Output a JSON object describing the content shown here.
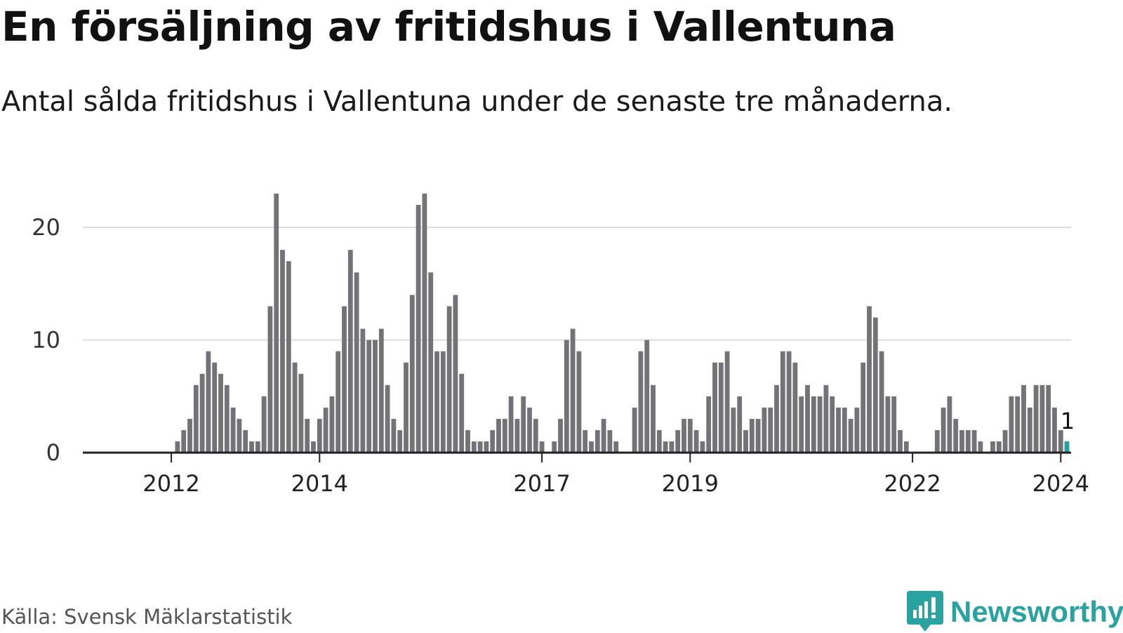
{
  "page": {
    "title": "En försäljning av fritidshus i Vallentuna",
    "subtitle": "Antal sålda fritidshus i Vallentuna under de senaste tre månaderna.",
    "source": "Källa: Svensk Mäklarstatistik",
    "brand": "Newsworthy"
  },
  "colors": {
    "bar": "#737277",
    "highlight": "#27a39e",
    "grid": "#dddddd",
    "axis": "#222222",
    "brand": "#2aa3a0"
  },
  "chart_data": {
    "type": "bar",
    "title": "En försäljning av fritidshus i Vallentuna",
    "subtitle": "Antal sålda fritidshus i Vallentuna under de senaste tre månaderna.",
    "xlabel": "",
    "ylabel": "",
    "ylim": [
      0,
      23
    ],
    "yticks": [
      0,
      10,
      20
    ],
    "grid": true,
    "x_start": "2011-06",
    "xticks": [
      {
        "label": "2012",
        "index": 7
      },
      {
        "label": "2014",
        "index": 31
      },
      {
        "label": "2017",
        "index": 67
      },
      {
        "label": "2019",
        "index": 91
      },
      {
        "label": "2022",
        "index": 127
      },
      {
        "label": "2024",
        "index": 151
      }
    ],
    "values": [
      0,
      0,
      0,
      0,
      0,
      0,
      0,
      0,
      1,
      2,
      3,
      6,
      7,
      9,
      8,
      7,
      6,
      4,
      3,
      2,
      1,
      1,
      5,
      13,
      23,
      18,
      17,
      8,
      7,
      3,
      1,
      3,
      4,
      5,
      9,
      13,
      18,
      16,
      11,
      10,
      10,
      11,
      6,
      3,
      2,
      8,
      14,
      22,
      23,
      16,
      9,
      9,
      13,
      14,
      7,
      2,
      1,
      1,
      1,
      2,
      3,
      3,
      5,
      3,
      5,
      4,
      3,
      1,
      0,
      1,
      3,
      10,
      11,
      9,
      2,
      1,
      2,
      3,
      2,
      1,
      0,
      0,
      4,
      9,
      10,
      6,
      2,
      1,
      1,
      2,
      3,
      3,
      2,
      1,
      5,
      8,
      8,
      9,
      4,
      5,
      2,
      3,
      3,
      4,
      4,
      6,
      9,
      9,
      8,
      5,
      6,
      5,
      5,
      6,
      5,
      4,
      4,
      3,
      4,
      8,
      13,
      12,
      9,
      5,
      5,
      2,
      1,
      0,
      0,
      0,
      0,
      2,
      4,
      5,
      3,
      2,
      2,
      2,
      1,
      0,
      1,
      1,
      2,
      5,
      5,
      6,
      4,
      6,
      6,
      6,
      4,
      2,
      1
    ],
    "highlight_index": 152,
    "highlight_label": "1"
  }
}
